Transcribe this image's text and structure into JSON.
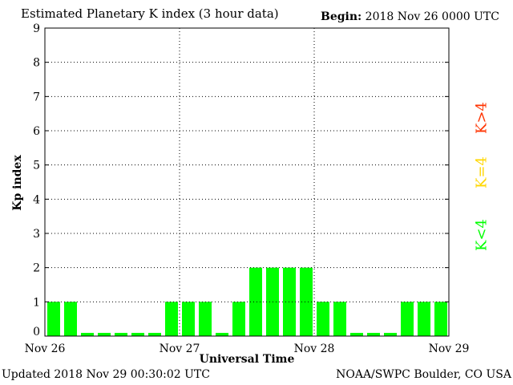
{
  "header": {
    "title": "Estimated Planetary K index (3 hour data)",
    "begin_label": "Begin:",
    "begin_value": "2018 Nov 26 0000 UTC"
  },
  "footer": {
    "updated": "Updated 2018 Nov 29 00:30:02 UTC",
    "credit": "NOAA/SWPC Boulder, CO USA"
  },
  "legend": {
    "greater": "K>4",
    "equal": "K=4",
    "less": "K<4"
  },
  "colors": {
    "low": "#00ff00",
    "moderate": "#ffd700",
    "high": "#ff3300",
    "grid": "#000000"
  },
  "chart_data": {
    "type": "bar",
    "xlabel": "Universal Time",
    "ylabel": "Kp index",
    "ylim": [
      0,
      9
    ],
    "y_ticks": [
      "0",
      "1",
      "2",
      "3",
      "4",
      "5",
      "6",
      "7",
      "8",
      "9"
    ],
    "x_tick_labels": [
      "Nov 26",
      "Nov 27",
      "Nov 28",
      "Nov 29"
    ],
    "grid": true,
    "values": [
      1,
      1,
      0,
      0,
      0,
      0,
      0,
      1,
      1,
      1,
      0,
      1,
      2,
      2,
      2,
      2,
      1,
      1,
      0,
      0,
      0,
      1,
      1,
      1
    ]
  }
}
